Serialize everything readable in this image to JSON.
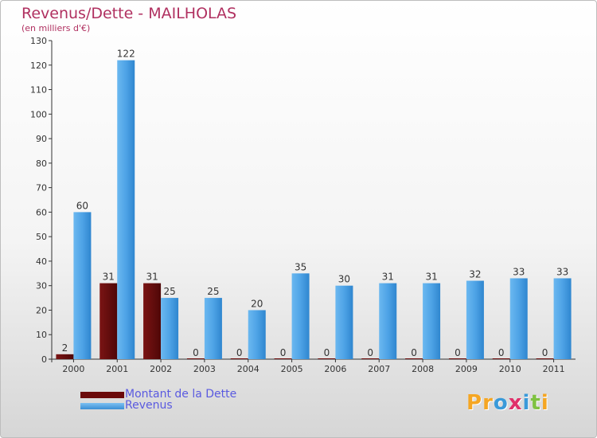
{
  "title": "Revenus/Dette - MAILHOLAS",
  "subtitle": "(en milliers d'€)",
  "chart_data": {
    "type": "bar",
    "categories": [
      "2000",
      "2001",
      "2002",
      "2003",
      "2004",
      "2005",
      "2006",
      "2007",
      "2008",
      "2009",
      "2010",
      "2011"
    ],
    "series": [
      {
        "name": "Montant de la Dette",
        "color": "#6b0a0a",
        "values": [
          2,
          31,
          31,
          0,
          0,
          0,
          0,
          0,
          0,
          0,
          0,
          0
        ]
      },
      {
        "name": "Revenus",
        "color": "#4ea3e6",
        "values": [
          60,
          122,
          25,
          25,
          20,
          35,
          30,
          31,
          31,
          32,
          33,
          33
        ]
      }
    ],
    "ylim": [
      0,
      130
    ],
    "yticks": [
      "0",
      "10",
      "20",
      "30",
      "40",
      "50",
      "60",
      "70",
      "80",
      "90",
      "100",
      "110",
      "120",
      "130"
    ],
    "grid": false,
    "legend": "bottom-left"
  },
  "legend": [
    {
      "label": "Montant de la Dette",
      "color": "#6b0a0a"
    },
    {
      "label": "Revenus",
      "color": "#4ea3e6"
    }
  ],
  "logo": {
    "text": "Proxiti"
  }
}
